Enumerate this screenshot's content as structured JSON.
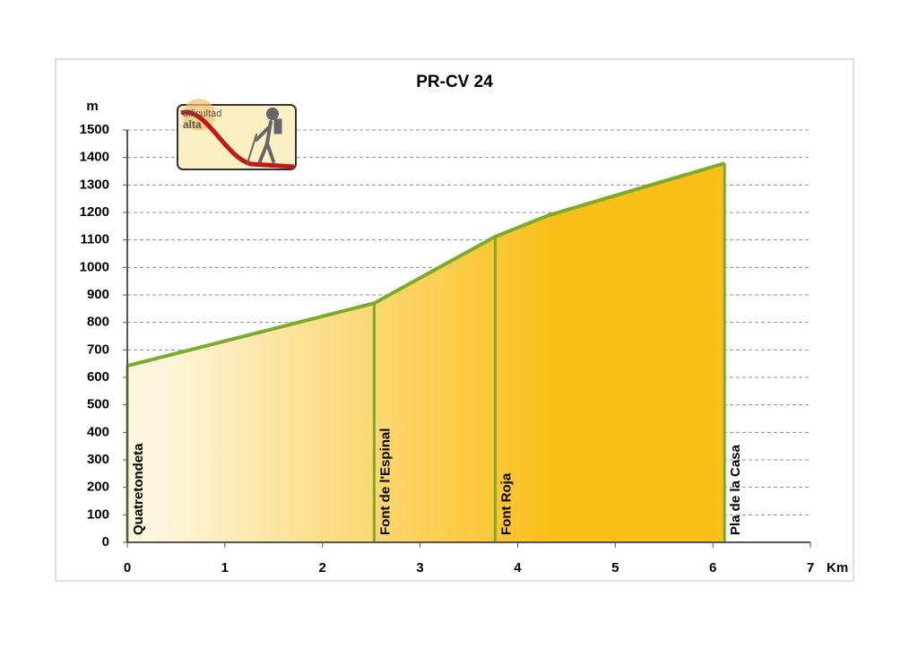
{
  "chart_data": {
    "type": "area",
    "title": "PR-CV 24",
    "y_label": "m",
    "x_label": "Km",
    "x": [
      0,
      2.53,
      3.77,
      4.32,
      6.12
    ],
    "values": [
      642,
      870,
      1112,
      1190,
      1379
    ],
    "color": "#7aab2a",
    "fill_colors": [
      "#fdf5dc",
      "#fbbf1a"
    ],
    "xlim": [
      0,
      7
    ],
    "xticks": [
      0,
      1,
      2,
      3,
      4,
      5,
      6,
      7
    ],
    "ylim": [
      0,
      1500
    ],
    "yticks": [
      0,
      100,
      200,
      300,
      400,
      500,
      600,
      700,
      800,
      900,
      1000,
      1100,
      1200,
      1300,
      1400,
      1500
    ],
    "grid": true,
    "waypoints": [
      {
        "label": "Quatretondeta",
        "x": 0
      },
      {
        "label": "Font de l'Espinal",
        "x": 2.53
      },
      {
        "label": "Font Roja",
        "x": 3.77
      },
      {
        "label": "Pla de la Casa",
        "x": 6.12
      }
    ],
    "badge": {
      "line1": "dificultad",
      "line2": "alta"
    }
  }
}
